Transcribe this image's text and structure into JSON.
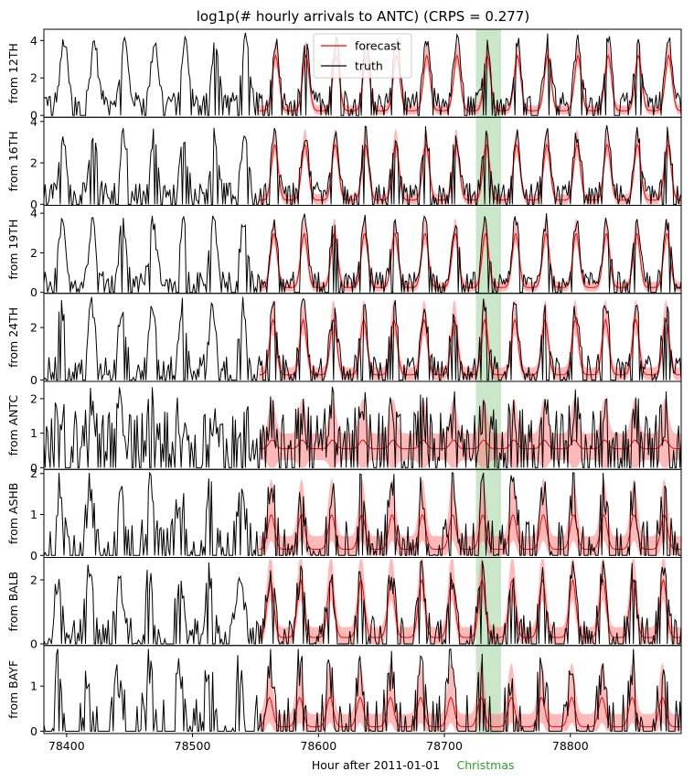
{
  "chart_data": {
    "type": "line",
    "title": "log1p(# hourly arrivals to ANTC) (CRPS = 0.277)",
    "xlabel": "Hour after 2011-01-01",
    "xlim": [
      78382,
      78888
    ],
    "x_ticks": [
      78400,
      78500,
      78600,
      78700,
      78800
    ],
    "x_tick_labels": [
      "78400",
      "78500",
      "78600",
      "78700",
      "78800"
    ],
    "forecast_start_hour": 78553,
    "highlight": {
      "label": "Christmas",
      "x_start": 78725,
      "x_end": 78745,
      "color": "#2ca02c"
    },
    "legend": {
      "position": "top-center, first panel",
      "entries": [
        {
          "name": "forecast",
          "color": "#ff0000"
        },
        {
          "name": "truth",
          "color": "#000000"
        }
      ]
    },
    "colors": {
      "forecast": "#ff0000",
      "band": "#ff8080",
      "truth": "#000000",
      "highlight": "#2ca02c"
    },
    "panels": [
      {
        "ylabel": "from 12TH",
        "ylim": [
          -0.1,
          4.6
        ],
        "yticks": [
          0,
          2,
          4
        ],
        "peak_truth": 4.0,
        "peak_forecast": 3.2,
        "base_truth": 0.8,
        "base_forecast": 0.25,
        "band_width": 0.35,
        "noise": 0.45,
        "zero_prob": 0.3
      },
      {
        "ylabel": "from 16TH",
        "ylim": [
          -0.05,
          4.2
        ],
        "yticks": [
          0,
          2,
          4
        ],
        "peak_truth": 3.4,
        "peak_forecast": 2.9,
        "base_truth": 0.6,
        "base_forecast": 0.2,
        "band_width": 0.35,
        "noise": 0.45,
        "zero_prob": 0.35
      },
      {
        "ylabel": "from 19TH",
        "ylim": [
          -0.05,
          4.4
        ],
        "yticks": [
          0,
          2,
          4
        ],
        "peak_truth": 3.6,
        "peak_forecast": 3.0,
        "base_truth": 0.6,
        "base_forecast": 0.25,
        "band_width": 0.35,
        "noise": 0.45,
        "zero_prob": 0.35
      },
      {
        "ylabel": "from 24TH",
        "ylim": [
          -0.05,
          3.3
        ],
        "yticks": [
          0,
          2
        ],
        "peak_truth": 2.8,
        "peak_forecast": 2.3,
        "base_truth": 0.5,
        "base_forecast": 0.2,
        "band_width": 0.35,
        "noise": 0.45,
        "zero_prob": 0.4
      },
      {
        "ylabel": "from ANTC",
        "ylim": [
          -0.05,
          2.5
        ],
        "yticks": [
          0,
          1,
          2
        ],
        "peak_truth": 1.6,
        "peak_forecast": 0.8,
        "base_truth": 0.9,
        "base_forecast": 0.55,
        "band_width": 0.55,
        "noise": 0.8,
        "zero_prob": 0.35
      },
      {
        "ylabel": "from ASHB",
        "ylim": [
          -0.05,
          2.1
        ],
        "yticks": [
          0,
          1,
          2
        ],
        "peak_truth": 1.7,
        "peak_forecast": 1.0,
        "base_truth": 0.3,
        "base_forecast": 0.15,
        "band_width": 0.4,
        "noise": 0.55,
        "zero_prob": 0.5
      },
      {
        "ylabel": "from BALB",
        "ylim": [
          -0.05,
          2.7
        ],
        "yticks": [
          0,
          2
        ],
        "peak_truth": 2.2,
        "peak_forecast": 2.0,
        "base_truth": 0.4,
        "base_forecast": 0.2,
        "band_width": 0.4,
        "noise": 0.5,
        "zero_prob": 0.45
      },
      {
        "ylabel": "from BAYF",
        "ylim": [
          -0.05,
          1.9
        ],
        "yticks": [
          0,
          1
        ],
        "peak_truth": 1.4,
        "peak_forecast": 0.75,
        "base_truth": 0.2,
        "base_forecast": 0.1,
        "band_width": 0.35,
        "noise": 0.6,
        "zero_prob": 0.65
      }
    ]
  }
}
